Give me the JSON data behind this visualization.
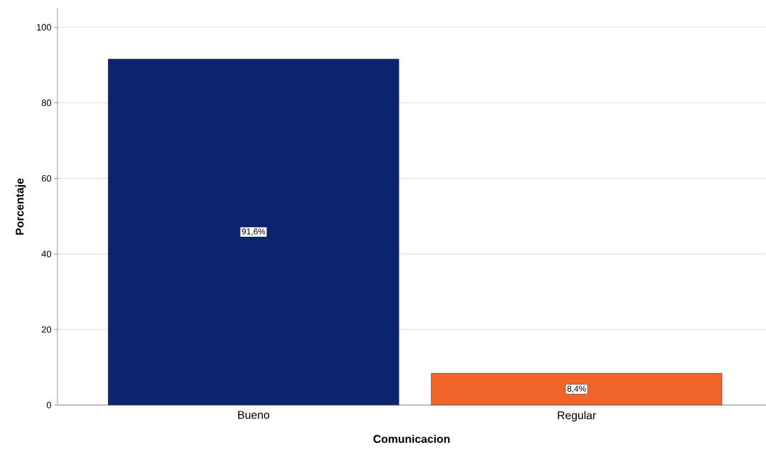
{
  "chart_data": {
    "type": "bar",
    "xlabel": "Comunicacion",
    "ylabel": "Porcentaje",
    "categories": [
      "Bueno",
      "Regular"
    ],
    "values": [
      91.6,
      8.4
    ],
    "value_labels": [
      "91,6%",
      "8,4%"
    ],
    "colors": [
      "#0b2470",
      "#f0652a"
    ],
    "ylim": [
      0,
      105
    ],
    "yticks": [
      0,
      20,
      40,
      60,
      80,
      100
    ],
    "grid": "y"
  }
}
